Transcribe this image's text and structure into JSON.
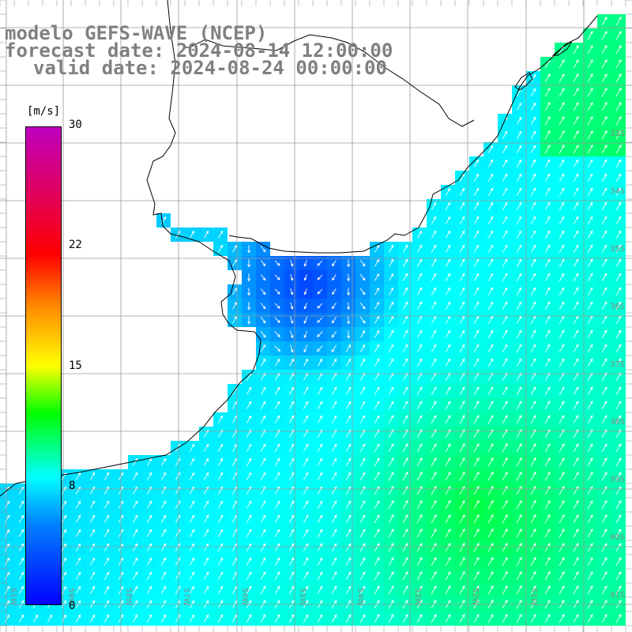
{
  "titles": {
    "line1": "modelo GEFS-WAVE (NCEP)",
    "line2": "forecast date: 2024-08-14 12:00:00",
    "line3": "valid date: 2024-08-24 00:00:00"
  },
  "colorbar": {
    "unit": "[m/s]",
    "ticks": [
      "30",
      "22",
      "15",
      "8",
      "0"
    ],
    "tick_values": [
      30,
      22,
      15,
      8,
      0
    ],
    "gradient_stops": [
      {
        "value": 0,
        "color": "#0000ff"
      },
      {
        "value": 5,
        "color": "#0080ff"
      },
      {
        "value": 8,
        "color": "#00ffff"
      },
      {
        "value": 12,
        "color": "#00ff00"
      },
      {
        "value": 15,
        "color": "#ffff00"
      },
      {
        "value": 19,
        "color": "#ff8000"
      },
      {
        "value": 22,
        "color": "#ff0000"
      },
      {
        "value": 30,
        "color": "#c000c0"
      }
    ]
  },
  "grid": {
    "lat_labels": [
      "33S",
      "34S",
      "35S",
      "36S",
      "37S",
      "38S",
      "39S",
      "40S",
      "41S"
    ],
    "lon_labels": [
      "61W",
      "59W",
      "58W",
      "57W",
      "56W",
      "55W",
      "54W",
      "53W",
      "52W",
      "51W"
    ]
  },
  "colors": {
    "land": "#ffffff",
    "coast": "#000000",
    "grid": "#9a9a9a",
    "arrow": "#ffffff",
    "title": "#808080"
  }
}
